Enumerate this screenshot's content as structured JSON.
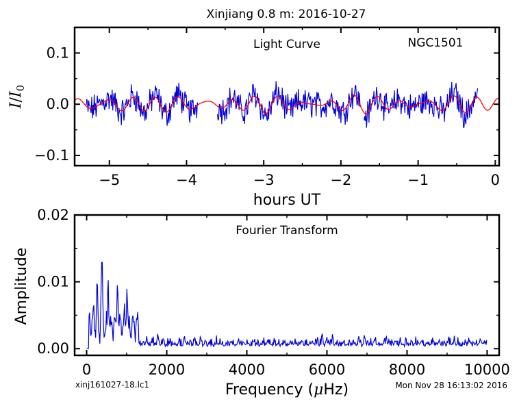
{
  "figure_title": "Xinjiang 0.8 m:  2016-10-27",
  "footer": {
    "left": "xinj161027-18.lc1",
    "right": "Mon Nov 28 16:13:02 2016"
  },
  "colors": {
    "data": "#0000dd",
    "model": "#ff0000",
    "axes": "#000000"
  },
  "chart_data": [
    {
      "type": "line",
      "title": "Light Curve",
      "annotation": "NGC1501",
      "xlabel": "hours UT",
      "ylabel": "I/I0",
      "ylabel_parts": {
        "var": "I",
        "slash": "/",
        "sub_var": "I",
        "subscript": "0"
      },
      "xlim": [
        -5.45,
        0.05
      ],
      "ylim": [
        -0.12,
        0.15
      ],
      "xticks": [
        -5,
        -4,
        -3,
        -2,
        -1,
        0
      ],
      "xtick_labels": [
        "−5",
        "−4",
        "−3",
        "−2",
        "−1",
        "0"
      ],
      "yticks": [
        -0.1,
        0.0,
        0.1
      ],
      "ytick_labels": [
        "−0.1",
        "0.0",
        "0.1"
      ],
      "grid": false,
      "segments": [
        {
          "x": [
            -5.3,
            -3.85
          ]
        },
        {
          "x": [
            -3.6,
            -1.75
          ]
        },
        {
          "x": [
            -1.7,
            -0.22
          ]
        }
      ],
      "model": {
        "amplitudes": [
          0.01,
          0.006,
          0.003
        ],
        "periods_hours": [
          0.32,
          0.26,
          0.45
        ]
      }
    },
    {
      "type": "line",
      "title": "Fourier Transform",
      "xlabel_parts": {
        "before": "Frequency (",
        "mu": "μ",
        "after": "Hz)"
      },
      "ylabel": "Amplitude",
      "xlim": [
        -300,
        10300
      ],
      "ylim": [
        -0.001,
        0.02
      ],
      "xticks": [
        0,
        2000,
        4000,
        6000,
        8000,
        10000
      ],
      "xtick_labels": [
        "0",
        "2000",
        "4000",
        "6000",
        "8000",
        "10000"
      ],
      "yticks": [
        0.0,
        0.01,
        0.02
      ],
      "ytick_labels": [
        "0.00",
        "0.01",
        "0.02"
      ],
      "grid": false,
      "peaks": [
        {
          "x": 380,
          "y": 0.0128
        },
        {
          "x": 770,
          "y": 0.0088
        },
        {
          "x": 540,
          "y": 0.0078
        },
        {
          "x": 260,
          "y": 0.0073
        },
        {
          "x": 1000,
          "y": 0.0058
        }
      ]
    }
  ]
}
